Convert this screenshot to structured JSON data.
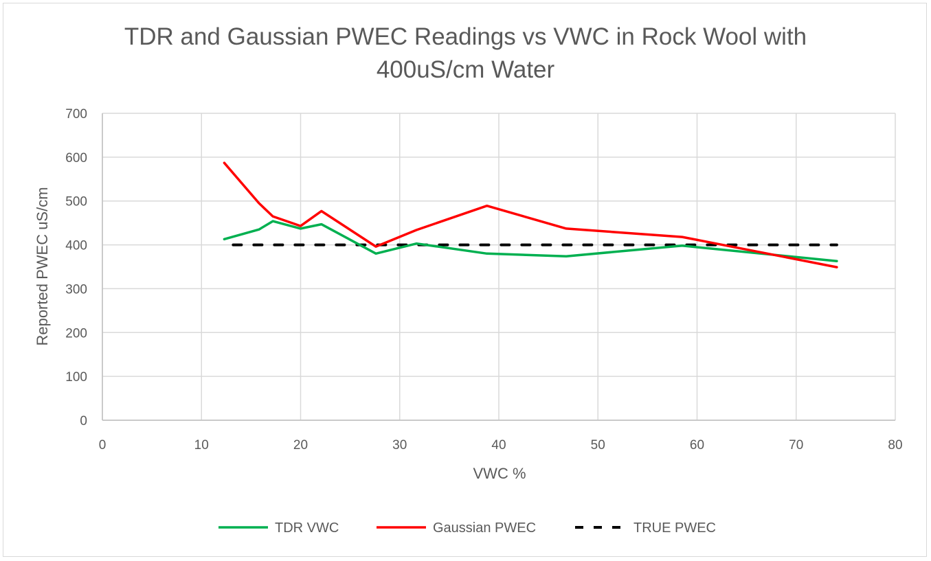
{
  "title_line1": "TDR and Gaussian PWEC Readings vs VWC in Rock Wool with",
  "title_line2": "400uS/cm Water",
  "chart_data": {
    "type": "line",
    "title": "TDR and Gaussian PWEC Readings vs VWC in Rock Wool with 400uS/cm Water",
    "xlabel": "VWC %",
    "ylabel": "Reported PWEC uS/cm",
    "xlim": [
      0,
      80
    ],
    "ylim": [
      0,
      700
    ],
    "xticks": [
      0,
      10,
      20,
      30,
      40,
      50,
      60,
      70,
      80
    ],
    "yticks": [
      0,
      100,
      200,
      300,
      400,
      500,
      600,
      700
    ],
    "grid": true,
    "legend_position": "bottom",
    "series": [
      {
        "name": "TDR VWC",
        "color": "#00b050",
        "style": "solid",
        "x": [
          12.3,
          15.8,
          17.2,
          20.0,
          22.1,
          27.6,
          31.7,
          38.8,
          46.8,
          58.5,
          74.1
        ],
        "y": [
          413,
          435,
          454,
          437,
          447,
          380,
          403,
          380,
          374,
          398,
          363
        ]
      },
      {
        "name": "Gaussian PWEC",
        "color": "#ff0000",
        "style": "solid",
        "x": [
          12.3,
          15.8,
          17.2,
          20.0,
          22.1,
          27.6,
          31.7,
          38.8,
          46.8,
          58.5,
          74.1
        ],
        "y": [
          587,
          495,
          465,
          443,
          477,
          396,
          434,
          489,
          437,
          418,
          349
        ]
      },
      {
        "name": "TRUE PWEC",
        "color": "#000000",
        "style": "dashed",
        "x": [
          13.2,
          74.1
        ],
        "y": [
          400,
          400
        ]
      }
    ]
  },
  "legend": [
    {
      "label": "TDR VWC",
      "color": "#00b050",
      "dash": false
    },
    {
      "label": "Gaussian PWEC",
      "color": "#ff0000",
      "dash": false
    },
    {
      "label": "TRUE PWEC",
      "color": "#000000",
      "dash": true
    }
  ]
}
